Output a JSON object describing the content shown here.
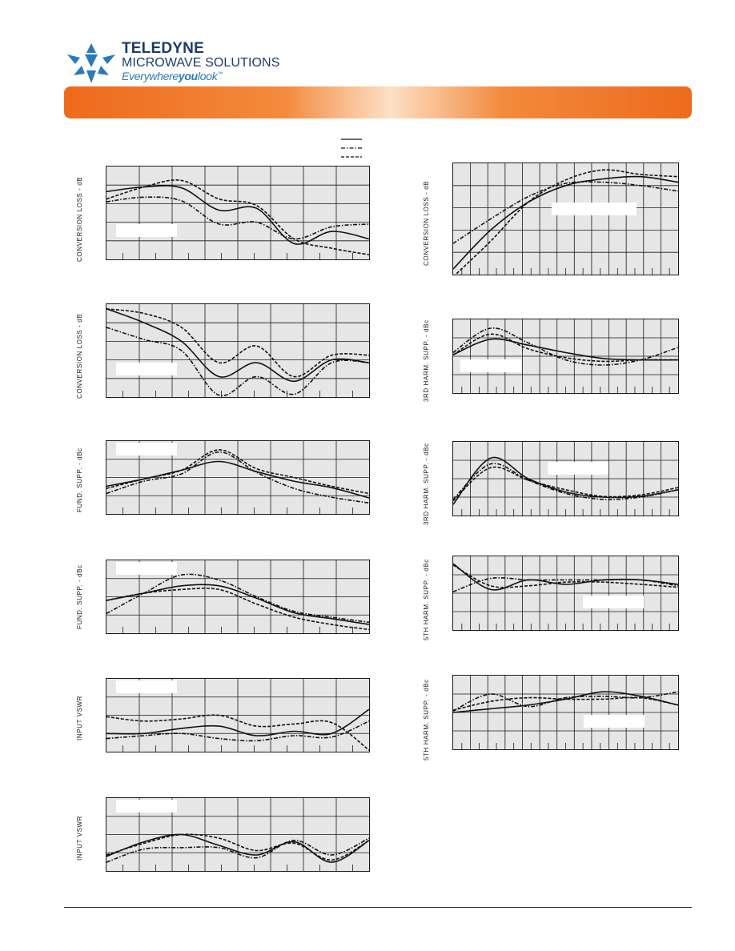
{
  "header": {
    "brand_line1": "TELEDYNE",
    "brand_line2": "MICROWAVE SOLUTIONS",
    "tagline_a": "Everywhere",
    "tagline_b": "you",
    "tagline_c": "look",
    "tagline_tm": "™"
  },
  "colors": {
    "brand_navy": "#1b3a6b",
    "brand_blue": "#2b79b8",
    "banner_orange": "#ee6a1c",
    "plot_bg": "#e6e6e6"
  },
  "legend_styles": [
    "solid",
    "dash-dot",
    "dashed"
  ],
  "charts": [
    {
      "name": "conversion-loss-1",
      "ylabel": "CONVERSION LOSS - dB",
      "grid": [
        7,
        5
      ],
      "curves": [
        [
          0.27,
          0.22,
          0.23,
          0.47,
          0.45,
          0.83,
          0.7,
          0.78
        ],
        [
          0.38,
          0.33,
          0.37,
          0.62,
          0.6,
          0.78,
          0.65,
          0.62
        ],
        [
          0.35,
          0.22,
          0.15,
          0.35,
          0.42,
          0.78,
          0.88,
          0.95
        ]
      ]
    },
    {
      "name": "conversion-loss-2",
      "ylabel": "CONVERSION LOSS - dB",
      "grid": [
        7,
        5
      ],
      "curves": [
        [
          0.05,
          0.2,
          0.4,
          0.78,
          0.63,
          0.83,
          0.6,
          0.63
        ],
        [
          0.25,
          0.38,
          0.5,
          0.98,
          0.78,
          0.97,
          0.63,
          0.63
        ],
        [
          0.05,
          0.1,
          0.25,
          0.63,
          0.45,
          0.78,
          0.55,
          0.55
        ]
      ]
    },
    {
      "name": "fund-supp-1",
      "ylabel": "FUND. SUPP. - dBc",
      "grid": [
        7,
        4
      ],
      "curves": [
        [
          0.62,
          0.52,
          0.4,
          0.28,
          0.42,
          0.55,
          0.64,
          0.78
        ],
        [
          0.72,
          0.55,
          0.45,
          0.15,
          0.43,
          0.65,
          0.77,
          0.85
        ],
        [
          0.65,
          0.52,
          0.4,
          0.12,
          0.38,
          0.5,
          0.62,
          0.72
        ]
      ]
    },
    {
      "name": "fund-supp-2",
      "ylabel": "FUND. SUPP. - dBc",
      "grid": [
        7,
        4
      ],
      "curves": [
        [
          0.55,
          0.45,
          0.35,
          0.35,
          0.52,
          0.72,
          0.8,
          0.88
        ],
        [
          0.73,
          0.45,
          0.2,
          0.27,
          0.5,
          0.7,
          0.78,
          0.85
        ],
        [
          0.55,
          0.45,
          0.4,
          0.4,
          0.6,
          0.78,
          0.88,
          0.95
        ]
      ]
    },
    {
      "name": "input-vswr-1",
      "ylabel": "INPUT VSWR",
      "grid": [
        7,
        4
      ],
      "curves": [
        [
          0.75,
          0.75,
          0.68,
          0.65,
          0.78,
          0.72,
          0.75,
          0.42
        ],
        [
          0.82,
          0.78,
          0.75,
          0.82,
          0.85,
          0.78,
          0.8,
          0.58
        ],
        [
          0.52,
          0.58,
          0.55,
          0.5,
          0.65,
          0.62,
          0.6,
          0.98
        ]
      ]
    },
    {
      "name": "input-vswr-2",
      "ylabel": "INPUT VSWR",
      "grid": [
        7,
        4
      ],
      "curves": [
        [
          0.8,
          0.6,
          0.5,
          0.65,
          0.78,
          0.6,
          0.88,
          0.58
        ],
        [
          0.88,
          0.7,
          0.68,
          0.68,
          0.82,
          0.58,
          0.78,
          0.55
        ],
        [
          0.78,
          0.62,
          0.5,
          0.55,
          0.72,
          0.62,
          0.85,
          0.58
        ]
      ]
    },
    {
      "name": "conversion-loss-3",
      "ylabel": "CONVERSION LOSS - dB",
      "grid": [
        12,
        5
      ],
      "curves": [
        [
          0.95,
          0.6,
          0.35,
          0.2,
          0.14,
          0.12,
          0.17
        ],
        [
          0.72,
          0.5,
          0.3,
          0.18,
          0.17,
          0.2,
          0.25
        ],
        [
          1.02,
          0.7,
          0.35,
          0.15,
          0.06,
          0.1,
          0.12
        ]
      ]
    },
    {
      "name": "3rd-harm-supp-1",
      "ylabel": "3RD HARM. SUPP. - dBc",
      "grid": [
        12,
        4
      ],
      "curves": [
        [
          0.48,
          0.27,
          0.35,
          0.45,
          0.53,
          0.55,
          0.55
        ],
        [
          0.45,
          0.12,
          0.32,
          0.55,
          0.62,
          0.55,
          0.38
        ],
        [
          0.48,
          0.2,
          0.4,
          0.52,
          0.57,
          0.55,
          0.55
        ]
      ]
    },
    {
      "name": "3rd-harm-supp-2",
      "ylabel": "3RD HARM. SUPP. - dBc",
      "grid": [
        12,
        4
      ],
      "curves": [
        [
          0.85,
          0.22,
          0.5,
          0.68,
          0.75,
          0.74,
          0.65
        ],
        [
          0.78,
          0.3,
          0.52,
          0.7,
          0.78,
          0.75,
          0.65
        ],
        [
          0.8,
          0.35,
          0.52,
          0.65,
          0.74,
          0.72,
          0.62
        ]
      ]
    },
    {
      "name": "5th-harm-supp-1",
      "ylabel": "5TH HARM. SUPP. - dBc",
      "grid": [
        12,
        4
      ],
      "curves": [
        [
          0.1,
          0.45,
          0.32,
          0.38,
          0.32,
          0.32,
          0.38
        ],
        [
          0.48,
          0.3,
          0.32,
          0.32,
          0.32,
          0.32,
          0.4
        ],
        [
          0.12,
          0.4,
          0.4,
          0.35,
          0.35,
          0.38,
          0.42
        ]
      ]
    },
    {
      "name": "5th-harm-supp-2",
      "ylabel": "5TH HARM. SUPP. - dBc",
      "grid": [
        12,
        4
      ],
      "curves": [
        [
          0.5,
          0.45,
          0.4,
          0.32,
          0.22,
          0.28,
          0.4
        ],
        [
          0.48,
          0.25,
          0.42,
          0.3,
          0.28,
          0.3,
          0.22
        ],
        [
          0.47,
          0.35,
          0.3,
          0.32,
          0.32,
          0.3,
          0.4
        ]
      ]
    }
  ]
}
